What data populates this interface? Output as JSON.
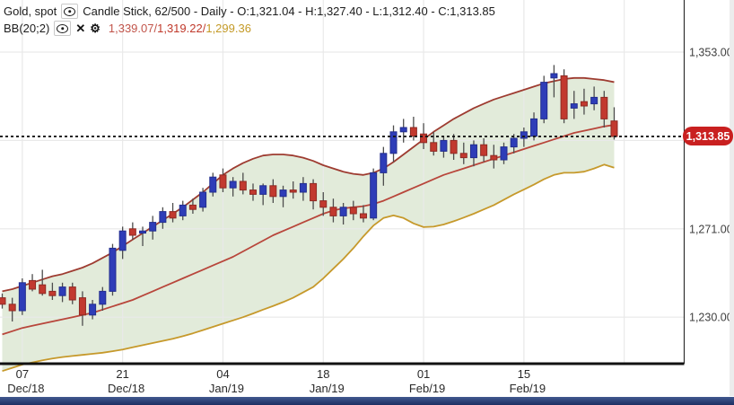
{
  "header": {
    "symbol": "Gold, spot",
    "series_info": "Candle Stick, 62/500 - Daily - O:1,321.04 - H:1,327.40 - L:1,312.40 - C:1,313.85"
  },
  "indicator": {
    "name": "BB(20;2)",
    "separator": "/",
    "upper_value": "1,339.07",
    "middle_value": "1,319.22",
    "lower_value": "1,299.36",
    "remove_glyph": "✕",
    "settings_glyph": "⚙"
  },
  "price_badge": {
    "label": "1,313.85",
    "color": "#c92020"
  },
  "y_axis": {
    "labels": [
      "1,353.00",
      "1,271.00",
      "1,230.00"
    ],
    "values": [
      1353,
      1271,
      1230
    ]
  },
  "x_axis": {
    "days": [
      "07",
      "21",
      "04",
      "18",
      "01",
      "15"
    ],
    "months": [
      "Dec/18",
      "Dec/18",
      "Jan/19",
      "Jan/19",
      "Feb/19",
      "Feb/19"
    ]
  },
  "chart_data": {
    "type": "candlestick",
    "title": "Gold, spot - Daily candlestick with Bollinger Bands BB(20;2)",
    "interval": "Daily",
    "candles_shown": "62/500",
    "last_ohlc": {
      "open": 1321.04,
      "high": 1327.4,
      "low": 1312.4,
      "close": 1313.85
    },
    "last_price": 1313.85,
    "bb_last": {
      "upper": 1339.07,
      "middle": 1319.22,
      "lower": 1299.36
    },
    "ylim": [
      1213,
      1377
    ],
    "y_gridline_values": [
      1353,
      1312,
      1271,
      1230
    ],
    "x_tick_indices": [
      2,
      12,
      22,
      32,
      42,
      52
    ],
    "x_gridline_indices": [
      2,
      12,
      22,
      32,
      42,
      52,
      62
    ],
    "dates": [
      "2018-12-05",
      "2018-12-06",
      "2018-12-07",
      "2018-12-10",
      "2018-12-11",
      "2018-12-12",
      "2018-12-13",
      "2018-12-14",
      "2018-12-17",
      "2018-12-18",
      "2018-12-19",
      "2018-12-20",
      "2018-12-21",
      "2018-12-24",
      "2018-12-25",
      "2018-12-26",
      "2018-12-27",
      "2018-12-28",
      "2018-12-31",
      "2019-01-01",
      "2019-01-02",
      "2019-01-03",
      "2019-01-04",
      "2019-01-07",
      "2019-01-08",
      "2019-01-09",
      "2019-01-10",
      "2019-01-11",
      "2019-01-14",
      "2019-01-15",
      "2019-01-16",
      "2019-01-17",
      "2019-01-18",
      "2019-01-21",
      "2019-01-22",
      "2019-01-23",
      "2019-01-24",
      "2019-01-25",
      "2019-01-28",
      "2019-01-29",
      "2019-01-30",
      "2019-01-31",
      "2019-02-01",
      "2019-02-04",
      "2019-02-05",
      "2019-02-06",
      "2019-02-07",
      "2019-02-08",
      "2019-02-11",
      "2019-02-12",
      "2019-02-13",
      "2019-02-14",
      "2019-02-15",
      "2019-02-18",
      "2019-02-19",
      "2019-02-20",
      "2019-02-21",
      "2019-02-22",
      "2019-02-25",
      "2019-02-26",
      "2019-02-27",
      "2019-02-28"
    ],
    "candles": [
      [
        1239,
        1241,
        1234,
        1236
      ],
      [
        1236,
        1239,
        1228,
        1233
      ],
      [
        1233,
        1248,
        1231,
        1246
      ],
      [
        1247,
        1250,
        1242,
        1243
      ],
      [
        1245,
        1252,
        1240,
        1241
      ],
      [
        1242,
        1246,
        1238,
        1240
      ],
      [
        1240,
        1246,
        1237,
        1244
      ],
      [
        1244,
        1246,
        1236,
        1238
      ],
      [
        1239,
        1242,
        1226,
        1231
      ],
      [
        1231,
        1238,
        1229,
        1236
      ],
      [
        1236,
        1244,
        1233,
        1242
      ],
      [
        1242,
        1264,
        1240,
        1262
      ],
      [
        1261,
        1272,
        1257,
        1270
      ],
      [
        1271,
        1274,
        1266,
        1268
      ],
      [
        1269,
        1272,
        1263,
        1270
      ],
      [
        1270,
        1277,
        1266,
        1274
      ],
      [
        1274,
        1281,
        1271,
        1279
      ],
      [
        1279,
        1283,
        1274,
        1276
      ],
      [
        1277,
        1284,
        1275,
        1282
      ],
      [
        1282,
        1285,
        1278,
        1280
      ],
      [
        1281,
        1290,
        1279,
        1288
      ],
      [
        1288,
        1297,
        1286,
        1295
      ],
      [
        1296,
        1299,
        1288,
        1290
      ],
      [
        1290,
        1295,
        1286,
        1293
      ],
      [
        1293,
        1297,
        1287,
        1289
      ],
      [
        1289,
        1292,
        1284,
        1287
      ],
      [
        1287,
        1292,
        1282,
        1291
      ],
      [
        1291,
        1294,
        1283,
        1286
      ],
      [
        1286,
        1291,
        1281,
        1289
      ],
      [
        1289,
        1293,
        1285,
        1288
      ],
      [
        1288,
        1295,
        1284,
        1292
      ],
      [
        1292,
        1294,
        1280,
        1284
      ],
      [
        1284,
        1288,
        1277,
        1281
      ],
      [
        1281,
        1285,
        1274,
        1277
      ],
      [
        1277,
        1283,
        1273,
        1281
      ],
      [
        1281,
        1284,
        1275,
        1278
      ],
      [
        1278,
        1282,
        1274,
        1276
      ],
      [
        1276,
        1299,
        1275,
        1297
      ],
      [
        1297,
        1309,
        1291,
        1306
      ],
      [
        1306,
        1319,
        1302,
        1316
      ],
      [
        1316,
        1322,
        1311,
        1318
      ],
      [
        1318,
        1323,
        1312,
        1314
      ],
      [
        1315,
        1320,
        1308,
        1311
      ],
      [
        1311,
        1316,
        1305,
        1307
      ],
      [
        1307,
        1314,
        1304,
        1312
      ],
      [
        1312,
        1315,
        1303,
        1306
      ],
      [
        1306,
        1311,
        1301,
        1304
      ],
      [
        1304,
        1312,
        1300,
        1310
      ],
      [
        1310,
        1313,
        1302,
        1305
      ],
      [
        1305,
        1310,
        1299,
        1303
      ],
      [
        1303,
        1311,
        1301,
        1309
      ],
      [
        1309,
        1315,
        1306,
        1313
      ],
      [
        1313,
        1318,
        1309,
        1316
      ],
      [
        1314,
        1325,
        1312,
        1322
      ],
      [
        1322,
        1342,
        1320,
        1339
      ],
      [
        1341,
        1347,
        1332,
        1343
      ],
      [
        1342,
        1345,
        1320,
        1322
      ],
      [
        1327,
        1335,
        1322,
        1329
      ],
      [
        1330,
        1336,
        1324,
        1328
      ],
      [
        1329,
        1337,
        1326,
        1332
      ],
      [
        1332,
        1335,
        1318,
        1322
      ],
      [
        1321.04,
        1327.4,
        1312.4,
        1313.85
      ]
    ],
    "bb_upper": [
      1242,
      1243,
      1244.5,
      1246,
      1247.5,
      1249,
      1250,
      1251.5,
      1253,
      1255,
      1257.5,
      1260,
      1263,
      1266,
      1269,
      1272,
      1275,
      1278,
      1281,
      1284.5,
      1288,
      1292,
      1296,
      1299,
      1301.5,
      1303.5,
      1305,
      1305.5,
      1305.5,
      1305,
      1304,
      1302.5,
      1300.5,
      1299,
      1297.5,
      1296.5,
      1296,
      1297,
      1299,
      1302,
      1305.5,
      1309,
      1312.5,
      1316,
      1319,
      1322,
      1324.5,
      1327,
      1329,
      1331,
      1332.5,
      1334,
      1335.5,
      1337,
      1338.5,
      1339.5,
      1340.5,
      1341,
      1341,
      1340.5,
      1340,
      1339.07
    ],
    "bb_middle": [
      1222,
      1223.5,
      1225,
      1226,
      1227,
      1228,
      1229,
      1230,
      1231,
      1232,
      1233.5,
      1235,
      1236.5,
      1238,
      1240,
      1242,
      1244,
      1246,
      1248,
      1250,
      1252,
      1254,
      1256,
      1258,
      1260.5,
      1263,
      1265.5,
      1268,
      1270,
      1272,
      1274,
      1276,
      1278,
      1279.5,
      1280.5,
      1281,
      1281.5,
      1282.5,
      1284,
      1286,
      1288,
      1290,
      1292,
      1294,
      1296,
      1297.5,
      1299,
      1300.5,
      1302,
      1303.5,
      1305,
      1306.5,
      1308,
      1309.5,
      1311,
      1312.5,
      1314,
      1315.5,
      1316.5,
      1317.5,
      1318.5,
      1319.22
    ],
    "bb_lower": [
      1205,
      1206.5,
      1208,
      1209,
      1210,
      1210.8,
      1211.5,
      1212,
      1212.5,
      1213,
      1213.5,
      1214.2,
      1215,
      1216,
      1217,
      1218,
      1219,
      1220,
      1221.2,
      1222.5,
      1224,
      1225.5,
      1227,
      1228.5,
      1230,
      1231.7,
      1233.5,
      1235.2,
      1237,
      1239,
      1241.5,
      1244,
      1248,
      1252.5,
      1257,
      1262,
      1267.5,
      1272.5,
      1276,
      1277.2,
      1276,
      1273.5,
      1271.8,
      1272,
      1273,
      1274.5,
      1276.2,
      1278,
      1280,
      1282,
      1284.5,
      1287,
      1289.2,
      1291.5,
      1294,
      1296,
      1297,
      1297,
      1297.5,
      1299,
      1300.8,
      1299.36
    ],
    "colors": {
      "bull": "#2e3db8",
      "bull_border": "#232e8e",
      "bear": "#c2392f",
      "bear_border": "#8f2a23",
      "bb_upper": "#9e3c31",
      "bb_middle": "#b8463b",
      "bb_lower": "#c6992b",
      "band_fill": "rgba(203,219,188,0.55)",
      "grid": "#e9e9e9",
      "last_price_line": "#151515",
      "badge": "#c92020",
      "bottom_bar": "#253c72"
    },
    "legend_position": "none",
    "grid": true
  }
}
